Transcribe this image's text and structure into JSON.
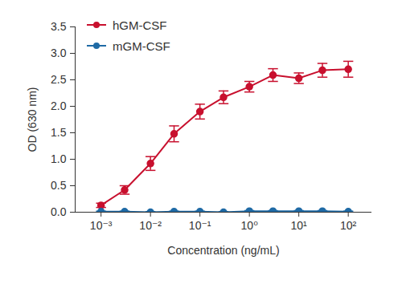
{
  "chart_data": {
    "type": "line",
    "x_label": "Concentration (ng/mL)",
    "y_label": "OD (630 nm)",
    "log": "x",
    "grid": false,
    "legend": "top-left",
    "x": [
      0.001,
      0.003,
      0.01,
      0.03,
      0.1,
      0.3,
      1,
      3,
      10,
      30,
      100
    ],
    "series": [
      {
        "name": "hGM-CSF",
        "color": "#c8102e",
        "marker": "circle",
        "line_style": "solid",
        "values": [
          0.13,
          0.42,
          0.92,
          1.48,
          1.9,
          2.17,
          2.37,
          2.59,
          2.53,
          2.68,
          2.7
        ],
        "errors": [
          0.04,
          0.08,
          0.13,
          0.15,
          0.14,
          0.12,
          0.1,
          0.12,
          0.1,
          0.13,
          0.15
        ]
      },
      {
        "name": "mGM-CSF",
        "color": "#1f6aa5",
        "marker": "circle",
        "line_style": "solid",
        "values": [
          0.01,
          0.01,
          0.0,
          0.01,
          0.01,
          0.0,
          0.02,
          0.02,
          0.02,
          0.02,
          0.01
        ],
        "errors": [
          0.01,
          0.01,
          0.01,
          0.01,
          0.01,
          0.01,
          0.01,
          0.01,
          0.01,
          0.01,
          0.01
        ]
      }
    ],
    "xlim": [
      0.0003,
      300
    ],
    "xticks": [
      {
        "value": 0.001,
        "label": "10⁻³"
      },
      {
        "value": 0.01,
        "label": "10⁻²"
      },
      {
        "value": 0.1,
        "label": "10⁻¹"
      },
      {
        "value": 1,
        "label": "10⁰"
      },
      {
        "value": 10,
        "label": "10¹"
      },
      {
        "value": 100,
        "label": "10²"
      }
    ],
    "ylim": [
      0,
      3.5
    ],
    "yticks": [
      {
        "value": 0,
        "label": "0.0"
      },
      0.5,
      {
        "value": 1,
        "label": "1.0"
      },
      1.5,
      {
        "value": 2,
        "label": "2.0"
      },
      2.5,
      {
        "value": 3,
        "label": "3.0"
      },
      3.5
    ]
  }
}
